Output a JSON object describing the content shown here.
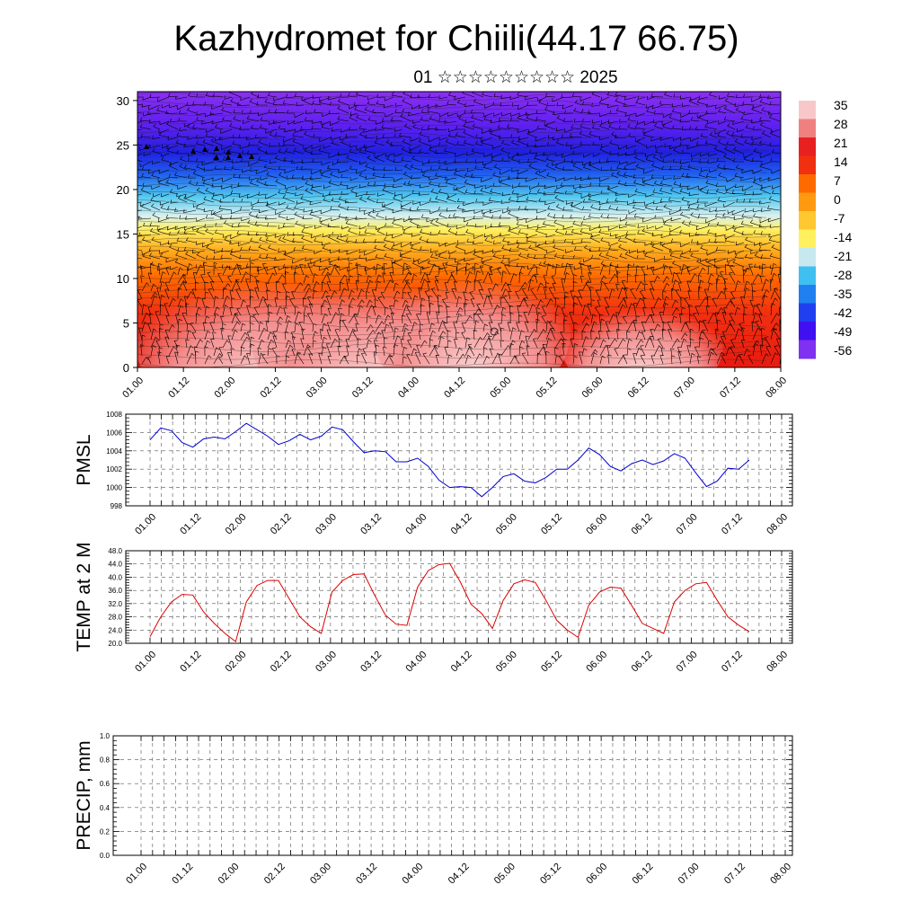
{
  "title": "Kazhydromet for Chiili(44.17 66.75)",
  "subtitle": "01 ☆☆☆☆☆☆☆☆☆ 2025",
  "time_ticks": [
    "01.00",
    "01.12",
    "02.00",
    "02.12",
    "03.00",
    "03.12",
    "04.00",
    "04.12",
    "05.00",
    "05.12",
    "06.00",
    "06.12",
    "07.00",
    "07.12",
    "08.00"
  ],
  "colors": {
    "pmsl_line": "#0000cc",
    "temp_line": "#dd0000",
    "precip_line": "#000000",
    "frame": "#000000"
  },
  "chart_data": [
    {
      "type": "heatmap",
      "name": "upper-air temperature cross-section with wind barbs",
      "x_range": [
        "01.00",
        "08.00"
      ],
      "ylim": [
        0,
        31
      ],
      "yticks": [
        0,
        5,
        10,
        15,
        20,
        25,
        30
      ],
      "colorbar": {
        "labels": [
          "35",
          "28",
          "21",
          "14",
          "7",
          "0",
          "-7",
          "-14",
          "-21",
          "-28",
          "-35",
          "-42",
          "-49",
          "-56"
        ],
        "colors": [
          "#f8c8c8",
          "#f08080",
          "#e82020",
          "#f03010",
          "#ff6a00",
          "#ff9a10",
          "#ffc830",
          "#fff060",
          "#c8e8f0",
          "#40c0f0",
          "#2080f0",
          "#2040f0",
          "#4010f0",
          "#8030f0"
        ]
      },
      "profile": [
        {
          "level": 0,
          "t": 34
        },
        {
          "level": 5,
          "t": 27
        },
        {
          "level": 10,
          "t": 16
        },
        {
          "level": 15,
          "t": 2
        },
        {
          "level": 18,
          "t": -12
        },
        {
          "level": 21,
          "t": -30
        },
        {
          "level": 24,
          "t": -48
        },
        {
          "level": 27,
          "t": -55
        },
        {
          "level": 31,
          "t": -58
        }
      ]
    },
    {
      "type": "line",
      "ylabel": "PMSL",
      "ylim": [
        998,
        1008
      ],
      "yticks": [
        "998",
        "1000",
        "1002",
        "1004",
        "1006",
        "1008"
      ],
      "x_range": [
        "01.00",
        "08.00"
      ],
      "series": [
        {
          "values": [
            1005.2,
            1006.5,
            1006.2,
            1004.9,
            1004.4,
            1005.3,
            1005.5,
            1005.3,
            1006.1,
            1007.0,
            1006.3,
            1005.6,
            1004.7,
            1005.1,
            1005.8,
            1005.2,
            1005.6,
            1006.6,
            1006.3,
            1005.0,
            1003.8,
            1004.0,
            1003.9,
            1002.8,
            1002.8,
            1003.2,
            1002.3,
            1000.8,
            1000.0,
            1000.1,
            1000.0,
            999.0,
            1000.0,
            1001.2,
            1001.5,
            1000.7,
            1000.5,
            1001.1,
            1002.0,
            1002.0,
            1003.0,
            1004.3,
            1003.6,
            1002.3,
            1001.8,
            1002.6,
            1003.0,
            1002.5,
            1002.9,
            1003.7,
            1003.2,
            1001.6,
            1000.1,
            1000.7,
            1002.1,
            1002.0,
            1003.0
          ]
        }
      ]
    },
    {
      "type": "line",
      "ylabel": "TEMP at 2 M",
      "ylim": [
        20,
        48
      ],
      "yticks": [
        "20.0",
        "24.0",
        "28.0",
        "32.0",
        "36.0",
        "40.0",
        "44.0",
        "48.0"
      ],
      "x_range": [
        "01.00",
        "08.00"
      ],
      "series": [
        {
          "values": [
            22.0,
            28.0,
            32.5,
            34.8,
            34.6,
            29.5,
            26.0,
            23.0,
            20.5,
            32.5,
            37.5,
            39.0,
            39.0,
            33.5,
            28.0,
            25.0,
            23.0,
            35.5,
            39.0,
            40.8,
            41.0,
            34.5,
            28.5,
            25.8,
            25.4,
            37.0,
            42.0,
            43.8,
            44.2,
            38.5,
            31.8,
            29.0,
            24.5,
            33.0,
            38.0,
            39.2,
            38.4,
            33.0,
            27.0,
            24.0,
            21.8,
            31.5,
            35.5,
            37.0,
            36.7,
            31.5,
            26.0,
            24.5,
            23.0,
            32.5,
            36.0,
            38.0,
            38.4,
            33.0,
            28.0,
            25.5,
            23.5
          ]
        }
      ]
    },
    {
      "type": "line",
      "ylabel": "PRECIP, mm",
      "ylim": [
        0,
        1
      ],
      "yticks": [
        "0.0",
        "0.2",
        "0.4",
        "0.6",
        "0.8",
        "1.0"
      ],
      "x_range": [
        "01.00",
        "08.00"
      ],
      "series": [
        {
          "values": [
            0,
            0,
            0,
            0,
            0,
            0,
            0,
            0,
            0,
            0,
            0,
            0,
            0,
            0,
            0,
            0,
            0,
            0,
            0,
            0,
            0,
            0,
            0,
            0,
            0,
            0,
            0,
            0,
            0,
            0,
            0,
            0,
            0,
            0,
            0,
            0,
            0,
            0,
            0,
            0,
            0,
            0,
            0,
            0,
            0,
            0,
            0,
            0,
            0,
            0,
            0,
            0,
            0,
            0,
            0,
            0,
            0
          ]
        }
      ]
    }
  ]
}
